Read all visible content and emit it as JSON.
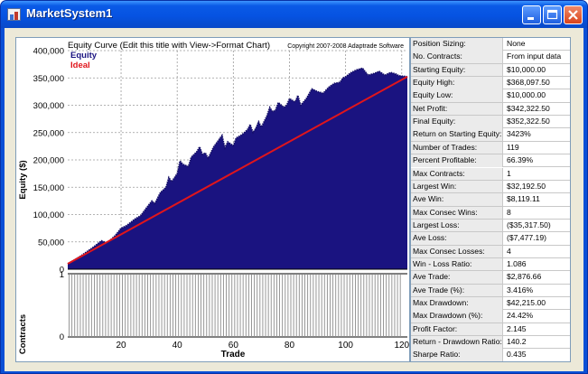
{
  "window": {
    "title": "MarketSystem1"
  },
  "chart_data": {
    "type": "area",
    "title": "Equity Curve (Edit this title with View->Format Chart)",
    "copyright": "Copyright 2007-2008 Adaptrade Software",
    "xlabel": "Trade",
    "ylabel": "Equity ($)",
    "lower_ylabel": "Contracts",
    "x_ticks": [
      "20",
      "40",
      "60",
      "80",
      "100",
      "120"
    ],
    "y_ticks": [
      "0",
      "50,000",
      "100,000",
      "150,000",
      "200,000",
      "250,000",
      "300,000",
      "350,000",
      "400,000"
    ],
    "contracts_ticks": [
      "0",
      "1"
    ],
    "xlim": [
      1,
      122
    ],
    "ylim": [
      0,
      400000
    ],
    "legend": [
      {
        "name": "Equity",
        "color": "#1a1380"
      },
      {
        "name": "Ideal",
        "color": "#e0151b"
      }
    ],
    "ideal": {
      "start": 10000,
      "end": 352322.5
    },
    "equity": [
      [
        1,
        10000
      ],
      [
        5,
        22000
      ],
      [
        10,
        40000
      ],
      [
        13,
        52000
      ],
      [
        15,
        48000
      ],
      [
        18,
        62000
      ],
      [
        20,
        75000
      ],
      [
        22,
        80000
      ],
      [
        25,
        92000
      ],
      [
        27,
        98000
      ],
      [
        29,
        112000
      ],
      [
        31,
        125000
      ],
      [
        32,
        120000
      ],
      [
        34,
        140000
      ],
      [
        36,
        150000
      ],
      [
        37,
        168000
      ],
      [
        38,
        160000
      ],
      [
        40,
        175000
      ],
      [
        41,
        198000
      ],
      [
        42,
        192000
      ],
      [
        44,
        188000
      ],
      [
        45,
        205000
      ],
      [
        47,
        215000
      ],
      [
        48,
        224000
      ],
      [
        49,
        210000
      ],
      [
        50,
        213000
      ],
      [
        51,
        203000
      ],
      [
        53,
        224000
      ],
      [
        55,
        238000
      ],
      [
        56,
        245000
      ],
      [
        57,
        222000
      ],
      [
        58,
        233000
      ],
      [
        60,
        226000
      ],
      [
        61,
        240000
      ],
      [
        63,
        246000
      ],
      [
        65,
        255000
      ],
      [
        66,
        265000
      ],
      [
        67,
        250000
      ],
      [
        68,
        258000
      ],
      [
        69,
        270000
      ],
      [
        70,
        260000
      ],
      [
        72,
        281000
      ],
      [
        73,
        296000
      ],
      [
        74,
        288000
      ],
      [
        75,
        291000
      ],
      [
        76,
        305000
      ],
      [
        78,
        296000
      ],
      [
        79,
        300000
      ],
      [
        80,
        312000
      ],
      [
        82,
        306000
      ],
      [
        83,
        318000
      ],
      [
        84,
        300000
      ],
      [
        86,
        312000
      ],
      [
        88,
        330000
      ],
      [
        90,
        325000
      ],
      [
        92,
        322000
      ],
      [
        94,
        333000
      ],
      [
        96,
        340000
      ],
      [
        98,
        342000
      ],
      [
        99,
        350000
      ],
      [
        100,
        352000
      ],
      [
        102,
        360000
      ],
      [
        104,
        365000
      ],
      [
        106,
        368000
      ],
      [
        108,
        355000
      ],
      [
        110,
        358000
      ],
      [
        112,
        362000
      ],
      [
        114,
        355000
      ],
      [
        116,
        360000
      ],
      [
        118,
        357000
      ],
      [
        119,
        354000
      ],
      [
        122,
        352322.5
      ]
    ],
    "contracts": {
      "count": 119,
      "value": 1
    }
  },
  "stats": [
    {
      "label": "Position Sizing:",
      "value": "None"
    },
    {
      "label": "No. Contracts:",
      "value": "From input data"
    },
    {
      "label": "Starting Equity:",
      "value": "$10,000.00"
    },
    {
      "label": "Equity High:",
      "value": "$368,097.50"
    },
    {
      "label": "Equity Low:",
      "value": "$10,000.00"
    },
    {
      "label": "Net Profit:",
      "value": "$342,322.50"
    },
    {
      "label": "Final Equity:",
      "value": "$352,322.50"
    },
    {
      "label": "Return on Starting Equity:",
      "value": "3423%"
    },
    {
      "label": "Number of Trades:",
      "value": "119"
    },
    {
      "label": "Percent Profitable:",
      "value": "66.39%"
    },
    {
      "label": "Max Contracts:",
      "value": "1"
    },
    {
      "label": "Largest Win:",
      "value": "$32,192.50"
    },
    {
      "label": "Ave Win:",
      "value": "$8,119.11"
    },
    {
      "label": "Max Consec Wins:",
      "value": "8"
    },
    {
      "label": "Largest Loss:",
      "value": "($35,317.50)"
    },
    {
      "label": "Ave Loss:",
      "value": "($7,477.19)"
    },
    {
      "label": "Max Consec Losses:",
      "value": "4"
    },
    {
      "label": "Win - Loss Ratio:",
      "value": "1.086"
    },
    {
      "label": "Ave Trade:",
      "value": "$2,876.66"
    },
    {
      "label": "Ave Trade (%):",
      "value": "3.416%"
    },
    {
      "label": "Max Drawdown:",
      "value": "$42,215.00"
    },
    {
      "label": "Max Drawdown (%):",
      "value": "24.42%"
    },
    {
      "label": "Profit Factor:",
      "value": "2.145"
    },
    {
      "label": "Return - Drawdown Ratio:",
      "value": "140.2"
    },
    {
      "label": "Sharpe Ratio:",
      "value": "0.435"
    }
  ]
}
